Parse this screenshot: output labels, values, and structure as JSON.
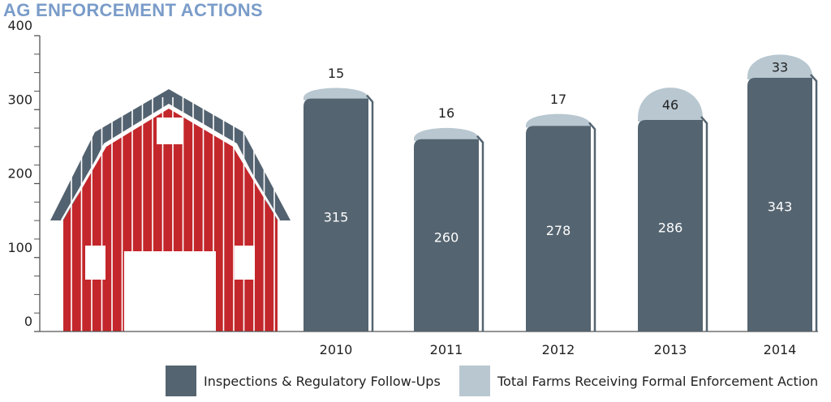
{
  "title": "AG ENFORCEMENT ACTIONS",
  "colors": {
    "inspections": "#546470",
    "enforcement": "#b8c7d0",
    "barn_red": "#c3272b",
    "barn_roof": "#536270",
    "axis": "#555555",
    "title": "#7a9cc9"
  },
  "chart_data": {
    "type": "bar",
    "title": "AG ENFORCEMENT ACTIONS",
    "categories": [
      "2010",
      "2011",
      "2012",
      "2013",
      "2014"
    ],
    "series": [
      {
        "name": "Inspections & Regulatory Follow-Ups",
        "values": [
          315,
          260,
          278,
          286,
          343
        ]
      },
      {
        "name": "Total Farms Receiving Formal Enforcement Action",
        "values": [
          15,
          16,
          17,
          46,
          33
        ]
      }
    ],
    "stacked": true,
    "ylim": [
      0,
      400
    ],
    "yticks": [
      0,
      100,
      200,
      300,
      400
    ],
    "xlabel": "",
    "ylabel": "",
    "legend_position": "bottom-right",
    "grid": false,
    "decoration": "red-barn-illustration"
  }
}
